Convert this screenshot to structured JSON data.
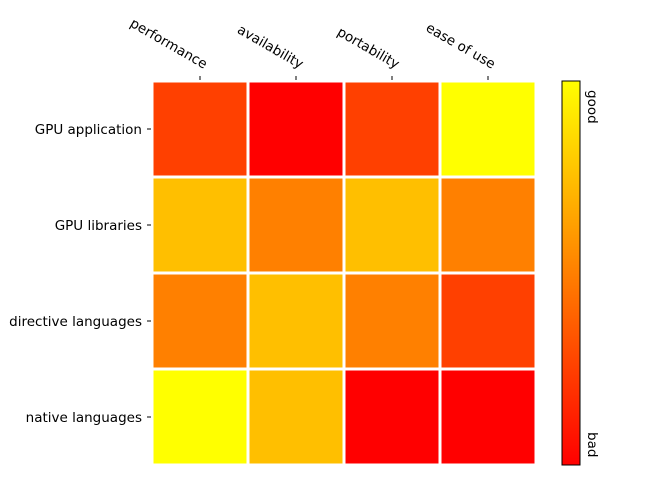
{
  "chart_data": {
    "type": "heatmap",
    "columns": [
      "performance",
      "availability",
      "portability",
      "ease of use"
    ],
    "rows": [
      "GPU application",
      "GPU libraries",
      "directive languages",
      "native languages"
    ],
    "values": [
      [
        0.25,
        0.0,
        0.25,
        1.0
      ],
      [
        0.75,
        0.5,
        0.75,
        0.5
      ],
      [
        0.5,
        0.75,
        0.5,
        0.25
      ],
      [
        1.0,
        0.75,
        0.0,
        0.0
      ]
    ],
    "vmin": 0,
    "vmax": 1,
    "colormap": [
      "#ff0000",
      "#ffff00"
    ],
    "colorbar": {
      "top_label": "good",
      "bottom_label": "bad"
    }
  }
}
